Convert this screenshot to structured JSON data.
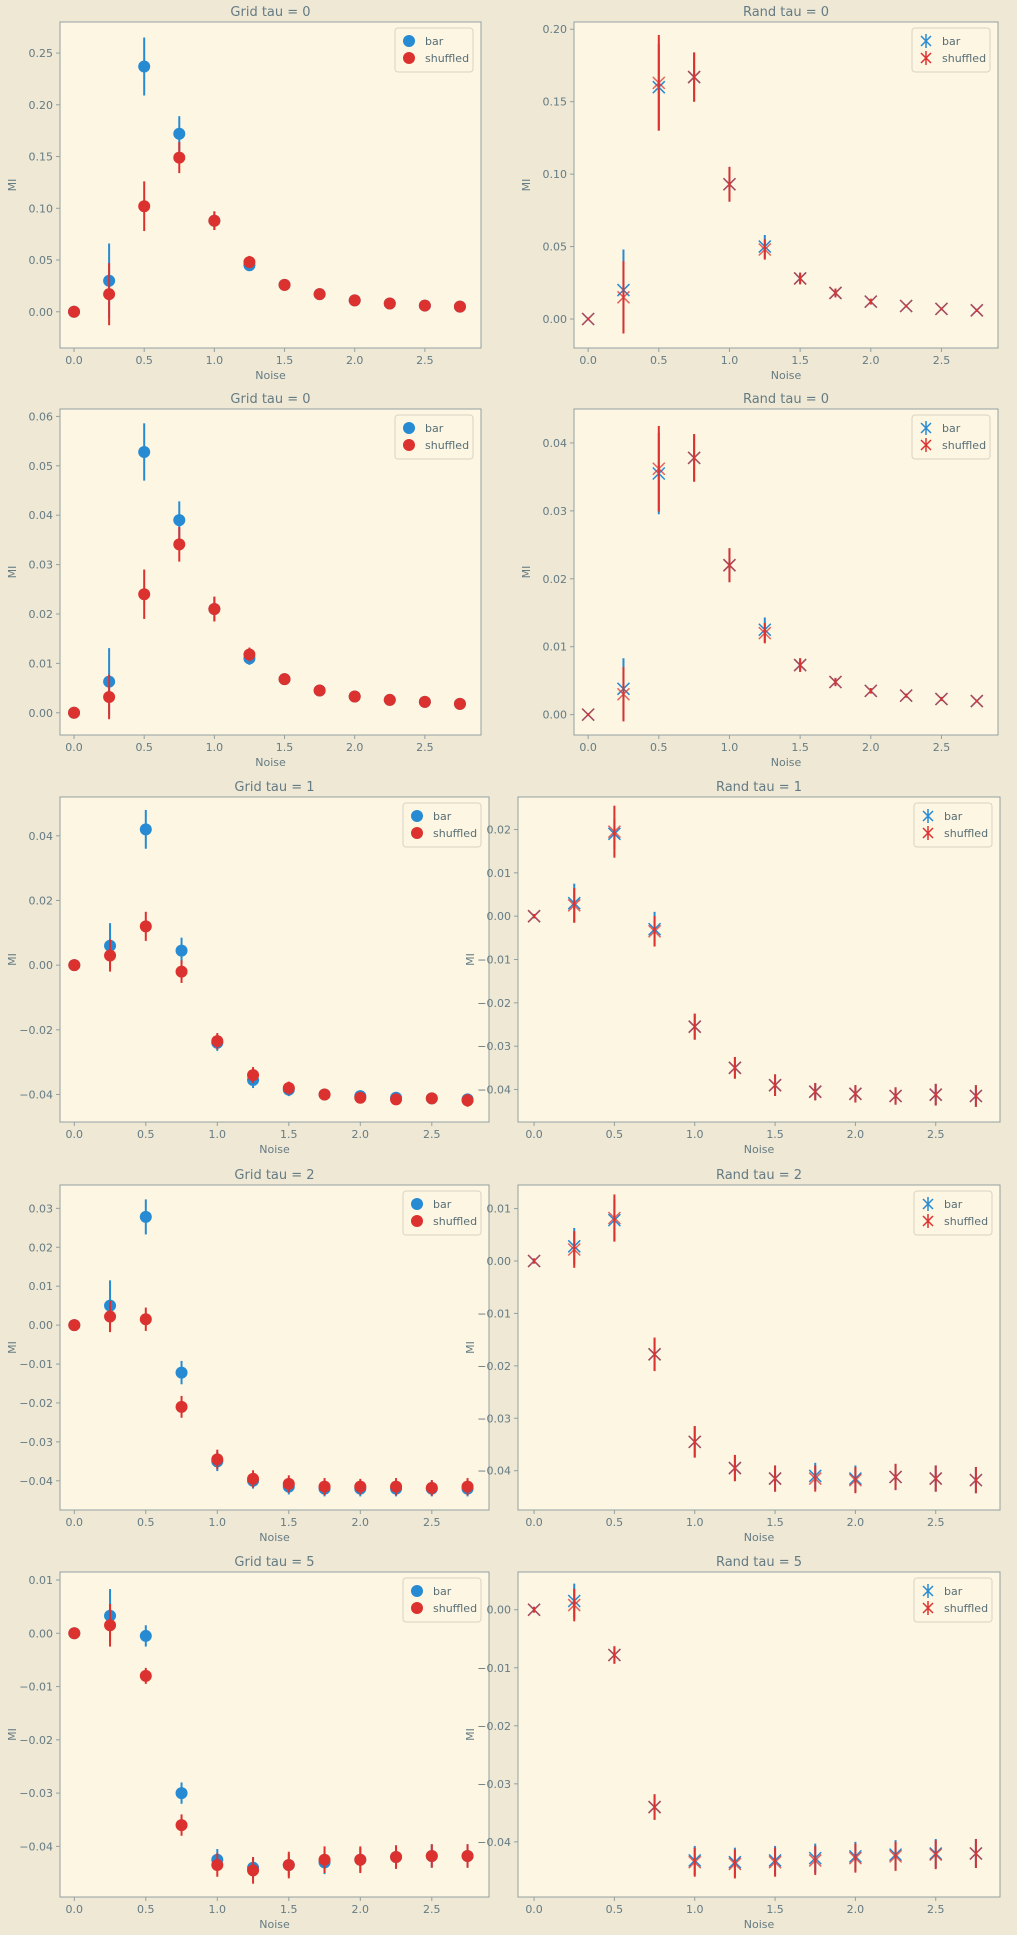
{
  "style": {
    "figure_bg": "#eee8d5",
    "axes_bg": "#fdf6e3",
    "spine": "#93a1a1",
    "text": "#657b83",
    "bar_color": "#268bd2",
    "shuffled_color": "#dc322f"
  },
  "chart_data": [
    {
      "type": "scatter",
      "marker": "circle",
      "title": "Grid tau = 0",
      "xlabel": "Noise",
      "ylabel": "MI",
      "xlim": [
        -0.1,
        2.9
      ],
      "ylim": [
        -0.035,
        0.28
      ],
      "xticks": [
        0.0,
        0.5,
        1.0,
        1.5,
        2.0,
        2.5
      ],
      "yticks": [
        0.0,
        0.05,
        0.1,
        0.15,
        0.2,
        0.25
      ],
      "ytick_decimals": 2,
      "legend": "top-right",
      "x": [
        0.0,
        0.25,
        0.5,
        0.75,
        1.0,
        1.25,
        1.5,
        1.75,
        2.0,
        2.25,
        2.5,
        2.75
      ],
      "series": [
        {
          "name": "bar",
          "color": "#268bd2",
          "values": [
            0.0,
            0.03,
            0.237,
            0.172,
            0.088,
            0.045,
            0.026,
            0.017,
            0.011,
            0.008,
            0.006,
            0.005
          ],
          "errors": [
            0.002,
            0.036,
            0.028,
            0.017,
            0.009,
            0.005,
            0.004,
            0.002,
            0.002,
            0.001,
            0.001,
            0.001
          ]
        },
        {
          "name": "shuffled",
          "color": "#dc322f",
          "values": [
            0.0,
            0.017,
            0.102,
            0.149,
            0.088,
            0.048,
            0.026,
            0.017,
            0.011,
            0.008,
            0.006,
            0.005
          ],
          "errors": [
            0.002,
            0.03,
            0.024,
            0.015,
            0.009,
            0.006,
            0.004,
            0.002,
            0.002,
            0.001,
            0.001,
            0.001
          ]
        }
      ]
    },
    {
      "type": "scatter",
      "marker": "x",
      "title": "Rand tau = 0",
      "xlabel": "Noise",
      "ylabel": "MI",
      "xlim": [
        -0.1,
        2.9
      ],
      "ylim": [
        -0.02,
        0.205
      ],
      "xticks": [
        0.0,
        0.5,
        1.0,
        1.5,
        2.0,
        2.5
      ],
      "yticks": [
        0.0,
        0.05,
        0.1,
        0.15,
        0.2
      ],
      "ytick_decimals": 2,
      "legend": "top-right",
      "x": [
        0.0,
        0.25,
        0.5,
        0.75,
        1.0,
        1.25,
        1.5,
        1.75,
        2.0,
        2.25,
        2.5,
        2.75
      ],
      "series": [
        {
          "name": "bar",
          "color": "#268bd2",
          "values": [
            0.0,
            0.02,
            0.16,
            0.167,
            0.093,
            0.05,
            0.028,
            0.018,
            0.012,
            0.009,
            0.007,
            0.006
          ],
          "errors": [
            0.001,
            0.028,
            0.03,
            0.017,
            0.012,
            0.008,
            0.004,
            0.003,
            0.002,
            0.001,
            0.001,
            0.001
          ]
        },
        {
          "name": "shuffled",
          "color": "#dc322f",
          "values": [
            0.0,
            0.015,
            0.163,
            0.167,
            0.093,
            0.048,
            0.028,
            0.018,
            0.012,
            0.009,
            0.007,
            0.006
          ],
          "errors": [
            0.001,
            0.025,
            0.033,
            0.017,
            0.012,
            0.007,
            0.004,
            0.003,
            0.002,
            0.001,
            0.001,
            0.001
          ]
        }
      ]
    },
    {
      "type": "scatter",
      "marker": "circle",
      "title": "Grid tau = 0",
      "xlabel": "Noise",
      "ylabel": "MI",
      "xlim": [
        -0.1,
        2.9
      ],
      "ylim": [
        -0.0045,
        0.0615
      ],
      "xticks": [
        0.0,
        0.5,
        1.0,
        1.5,
        2.0,
        2.5
      ],
      "yticks": [
        0.0,
        0.01,
        0.02,
        0.03,
        0.04,
        0.05,
        0.06
      ],
      "ytick_decimals": 2,
      "legend": "top-right",
      "x": [
        0.0,
        0.25,
        0.5,
        0.75,
        1.0,
        1.25,
        1.5,
        1.75,
        2.0,
        2.25,
        2.5,
        2.75
      ],
      "series": [
        {
          "name": "bar",
          "color": "#268bd2",
          "values": [
            0.0,
            0.0063,
            0.0528,
            0.039,
            0.021,
            0.011,
            0.0068,
            0.0045,
            0.0033,
            0.0026,
            0.0022,
            0.0018
          ],
          "errors": [
            0.0003,
            0.0068,
            0.0058,
            0.0038,
            0.0025,
            0.0013,
            0.0008,
            0.0005,
            0.0004,
            0.0003,
            0.0003,
            0.0002
          ]
        },
        {
          "name": "shuffled",
          "color": "#dc322f",
          "values": [
            0.0,
            0.0032,
            0.024,
            0.0341,
            0.021,
            0.0118,
            0.0068,
            0.0045,
            0.0033,
            0.0026,
            0.0022,
            0.0018
          ],
          "errors": [
            0.0003,
            0.0045,
            0.005,
            0.0035,
            0.0025,
            0.0014,
            0.0008,
            0.0005,
            0.0004,
            0.0003,
            0.0003,
            0.0002
          ]
        }
      ]
    },
    {
      "type": "scatter",
      "marker": "x",
      "title": "Rand tau = 0",
      "xlabel": "Noise",
      "ylabel": "MI",
      "xlim": [
        -0.1,
        2.9
      ],
      "ylim": [
        -0.003,
        0.045
      ],
      "xticks": [
        0.0,
        0.5,
        1.0,
        1.5,
        2.0,
        2.5
      ],
      "yticks": [
        0.0,
        0.01,
        0.02,
        0.03,
        0.04
      ],
      "ytick_decimals": 2,
      "legend": "top-right",
      "x": [
        0.0,
        0.25,
        0.5,
        0.75,
        1.0,
        1.25,
        1.5,
        1.75,
        2.0,
        2.25,
        2.5,
        2.75
      ],
      "series": [
        {
          "name": "bar",
          "color": "#268bd2",
          "values": [
            0.0,
            0.0038,
            0.0355,
            0.0378,
            0.022,
            0.0125,
            0.0073,
            0.0048,
            0.0035,
            0.0028,
            0.0023,
            0.002
          ],
          "errors": [
            0.0002,
            0.0045,
            0.006,
            0.0035,
            0.0025,
            0.0018,
            0.001,
            0.0006,
            0.0004,
            0.0003,
            0.0003,
            0.0002
          ]
        },
        {
          "name": "shuffled",
          "color": "#dc322f",
          "values": [
            0.0,
            0.003,
            0.0362,
            0.0378,
            0.022,
            0.012,
            0.0073,
            0.0048,
            0.0035,
            0.0028,
            0.0023,
            0.002
          ],
          "errors": [
            0.0002,
            0.004,
            0.0063,
            0.0035,
            0.0025,
            0.0015,
            0.001,
            0.0006,
            0.0004,
            0.0003,
            0.0003,
            0.0002
          ]
        }
      ]
    },
    {
      "type": "scatter",
      "marker": "circle",
      "title": "Grid tau = 1",
      "xlabel": "Noise",
      "ylabel": "MI",
      "xlim": [
        -0.1,
        2.9
      ],
      "ylim": [
        -0.0485,
        0.052
      ],
      "xticks": [
        0.0,
        0.5,
        1.0,
        1.5,
        2.0,
        2.5
      ],
      "yticks": [
        -0.04,
        -0.02,
        0.0,
        0.02,
        0.04
      ],
      "ytick_decimals": 2,
      "legend": "top-right",
      "x": [
        0.0,
        0.25,
        0.5,
        0.75,
        1.0,
        1.25,
        1.5,
        1.75,
        2.0,
        2.25,
        2.5,
        2.75
      ],
      "series": [
        {
          "name": "bar",
          "color": "#268bd2",
          "values": [
            0.0,
            0.006,
            0.042,
            0.0045,
            -0.024,
            -0.0355,
            -0.0385,
            -0.04,
            -0.0405,
            -0.041,
            -0.0412,
            -0.0415
          ],
          "errors": [
            0.0005,
            0.007,
            0.006,
            0.004,
            0.0025,
            0.0025,
            0.002,
            0.0015,
            0.0015,
            0.0015,
            0.0015,
            0.0015
          ]
        },
        {
          "name": "shuffled",
          "color": "#dc322f",
          "values": [
            0.0,
            0.003,
            0.012,
            -0.002,
            -0.0235,
            -0.034,
            -0.038,
            -0.04,
            -0.041,
            -0.0415,
            -0.0412,
            -0.0418
          ],
          "errors": [
            0.0005,
            0.005,
            0.0045,
            0.0035,
            0.0025,
            0.0025,
            0.002,
            0.0015,
            0.0015,
            0.0015,
            0.0015,
            0.002
          ]
        }
      ]
    },
    {
      "type": "scatter",
      "marker": "x",
      "title": "Rand tau = 1",
      "xlabel": "Noise",
      "ylabel": "MI",
      "xlim": [
        -0.1,
        2.9
      ],
      "ylim": [
        -0.0475,
        0.0275
      ],
      "xticks": [
        0.0,
        0.5,
        1.0,
        1.5,
        2.0,
        2.5
      ],
      "yticks": [
        -0.04,
        -0.03,
        -0.02,
        -0.01,
        0.0,
        0.01,
        0.02
      ],
      "ytick_decimals": 2,
      "legend": "top-right",
      "x": [
        0.0,
        0.25,
        0.5,
        0.75,
        1.0,
        1.25,
        1.5,
        1.75,
        2.0,
        2.25,
        2.5,
        2.75
      ],
      "series": [
        {
          "name": "bar",
          "color": "#268bd2",
          "values": [
            0.0,
            0.003,
            0.019,
            -0.003,
            -0.0255,
            -0.035,
            -0.039,
            -0.0405,
            -0.041,
            -0.0415,
            -0.0412,
            -0.0415
          ],
          "errors": [
            0.0005,
            0.0045,
            0.0035,
            0.004,
            0.003,
            0.0025,
            0.0025,
            0.002,
            0.002,
            0.002,
            0.0025,
            0.0025
          ]
        },
        {
          "name": "shuffled",
          "color": "#dc322f",
          "values": [
            0.0,
            0.0025,
            0.0195,
            -0.0035,
            -0.0255,
            -0.035,
            -0.039,
            -0.0405,
            -0.041,
            -0.0415,
            -0.0412,
            -0.0415
          ],
          "errors": [
            0.0005,
            0.004,
            0.006,
            0.0035,
            0.003,
            0.0025,
            0.0025,
            0.002,
            0.002,
            0.002,
            0.0025,
            0.0025
          ]
        }
      ]
    },
    {
      "type": "scatter",
      "marker": "circle",
      "title": "Grid tau = 2",
      "xlabel": "Noise",
      "ylabel": "MI",
      "xlim": [
        -0.1,
        2.9
      ],
      "ylim": [
        -0.0475,
        0.036
      ],
      "xticks": [
        0.0,
        0.5,
        1.0,
        1.5,
        2.0,
        2.5
      ],
      "yticks": [
        -0.04,
        -0.03,
        -0.02,
        -0.01,
        0.0,
        0.01,
        0.02,
        0.03
      ],
      "ytick_decimals": 2,
      "legend": "top-right",
      "x": [
        0.0,
        0.25,
        0.5,
        0.75,
        1.0,
        1.25,
        1.5,
        1.75,
        2.0,
        2.25,
        2.5,
        2.75
      ],
      "series": [
        {
          "name": "bar",
          "color": "#268bd2",
          "values": [
            0.0,
            0.005,
            0.0278,
            -0.0122,
            -0.035,
            -0.04,
            -0.0415,
            -0.042,
            -0.042,
            -0.042,
            -0.042,
            -0.042
          ],
          "errors": [
            0.0005,
            0.0065,
            0.0045,
            0.003,
            0.0025,
            0.002,
            0.002,
            0.002,
            0.002,
            0.002,
            0.002,
            0.002
          ]
        },
        {
          "name": "shuffled",
          "color": "#dc322f",
          "values": [
            0.0,
            0.0022,
            0.0015,
            -0.021,
            -0.0345,
            -0.0395,
            -0.0408,
            -0.0415,
            -0.0415,
            -0.0415,
            -0.0418,
            -0.0415
          ],
          "errors": [
            0.0005,
            0.004,
            0.003,
            0.0028,
            0.0025,
            0.0022,
            0.0022,
            0.0022,
            0.002,
            0.0022,
            0.002,
            0.0022
          ]
        }
      ]
    },
    {
      "type": "scatter",
      "marker": "x",
      "title": "Rand tau = 2",
      "xlabel": "Noise",
      "ylabel": "MI",
      "xlim": [
        -0.1,
        2.9
      ],
      "ylim": [
        -0.0475,
        0.0145
      ],
      "xticks": [
        0.0,
        0.5,
        1.0,
        1.5,
        2.0,
        2.5
      ],
      "yticks": [
        -0.04,
        -0.03,
        -0.02,
        -0.01,
        0.0,
        0.01
      ],
      "ytick_decimals": 2,
      "legend": "top-right",
      "x": [
        0.0,
        0.25,
        0.5,
        0.75,
        1.0,
        1.25,
        1.5,
        1.75,
        2.0,
        2.25,
        2.5,
        2.75
      ],
      "series": [
        {
          "name": "bar",
          "color": "#268bd2",
          "values": [
            0.0,
            0.0028,
            0.0078,
            -0.0178,
            -0.0345,
            -0.0395,
            -0.0415,
            -0.041,
            -0.0415,
            -0.0412,
            -0.0415,
            -0.0418
          ],
          "errors": [
            0.0005,
            0.0035,
            0.004,
            0.003,
            0.003,
            0.0025,
            0.0025,
            0.0025,
            0.0025,
            0.0025,
            0.0025,
            0.0025
          ]
        },
        {
          "name": "shuffled",
          "color": "#dc322f",
          "values": [
            0.0,
            0.0022,
            0.0082,
            -0.0178,
            -0.0345,
            -0.0395,
            -0.0415,
            -0.0415,
            -0.0418,
            -0.0412,
            -0.0415,
            -0.0418
          ],
          "errors": [
            0.0005,
            0.0035,
            0.0045,
            0.0032,
            0.003,
            0.0025,
            0.0025,
            0.0025,
            0.0025,
            0.0025,
            0.0025,
            0.0025
          ]
        }
      ]
    },
    {
      "type": "scatter",
      "marker": "circle",
      "title": "Grid tau = 5",
      "xlabel": "Noise",
      "ylabel": "MI",
      "xlim": [
        -0.1,
        2.9
      ],
      "ylim": [
        -0.0495,
        0.0115
      ],
      "xticks": [
        0.0,
        0.5,
        1.0,
        1.5,
        2.0,
        2.5
      ],
      "yticks": [
        -0.04,
        -0.03,
        -0.02,
        -0.01,
        0.0,
        0.01
      ],
      "ytick_decimals": 2,
      "legend": "top-right",
      "x": [
        0.0,
        0.25,
        0.5,
        0.75,
        1.0,
        1.25,
        1.5,
        1.75,
        2.0,
        2.25,
        2.5,
        2.75
      ],
      "series": [
        {
          "name": "bar",
          "color": "#268bd2",
          "values": [
            0.0,
            0.0033,
            -0.0005,
            -0.03,
            -0.0425,
            -0.044,
            -0.0435,
            -0.043,
            -0.0425,
            -0.042,
            -0.0418,
            -0.0418
          ],
          "errors": [
            0.0005,
            0.005,
            0.002,
            0.002,
            0.002,
            0.002,
            0.002,
            0.0022,
            0.0022,
            0.0022,
            0.0022,
            0.0022
          ]
        },
        {
          "name": "shuffled",
          "color": "#dc322f",
          "values": [
            0.0,
            0.0015,
            -0.008,
            -0.036,
            -0.0435,
            -0.0445,
            -0.0435,
            -0.0425,
            -0.0425,
            -0.042,
            -0.0418,
            -0.0418
          ],
          "errors": [
            0.0005,
            0.004,
            0.0015,
            0.002,
            0.0022,
            0.0025,
            0.0025,
            0.0025,
            0.0025,
            0.0022,
            0.0022,
            0.0022
          ]
        }
      ]
    },
    {
      "type": "scatter",
      "marker": "x",
      "title": "Rand tau = 5",
      "xlabel": "Noise",
      "ylabel": "MI",
      "xlim": [
        -0.1,
        2.9
      ],
      "ylim": [
        -0.0495,
        0.0065
      ],
      "xticks": [
        0.0,
        0.5,
        1.0,
        1.5,
        2.0,
        2.5
      ],
      "yticks": [
        -0.04,
        -0.03,
        -0.02,
        -0.01,
        0.0
      ],
      "ytick_decimals": 2,
      "legend": "top-right",
      "x": [
        0.0,
        0.25,
        0.5,
        0.75,
        1.0,
        1.25,
        1.5,
        1.75,
        2.0,
        2.25,
        2.5,
        2.75
      ],
      "series": [
        {
          "name": "bar",
          "color": "#268bd2",
          "values": [
            0.0,
            0.0015,
            -0.0078,
            -0.034,
            -0.0432,
            -0.0435,
            -0.0432,
            -0.0428,
            -0.0425,
            -0.0422,
            -0.042,
            -0.042
          ],
          "errors": [
            0.0005,
            0.003,
            0.0015,
            0.0022,
            0.0025,
            0.0025,
            0.0025,
            0.0025,
            0.0025,
            0.0025,
            0.0025,
            0.0025
          ]
        },
        {
          "name": "shuffled",
          "color": "#dc322f",
          "values": [
            0.0,
            0.0008,
            -0.0078,
            -0.034,
            -0.0435,
            -0.0438,
            -0.0435,
            -0.0432,
            -0.0428,
            -0.0425,
            -0.0422,
            -0.042
          ],
          "errors": [
            0.0005,
            0.0028,
            0.0015,
            0.0022,
            0.0025,
            0.0025,
            0.0025,
            0.0025,
            0.0025,
            0.0025,
            0.0025,
            0.0025
          ]
        }
      ]
    }
  ]
}
